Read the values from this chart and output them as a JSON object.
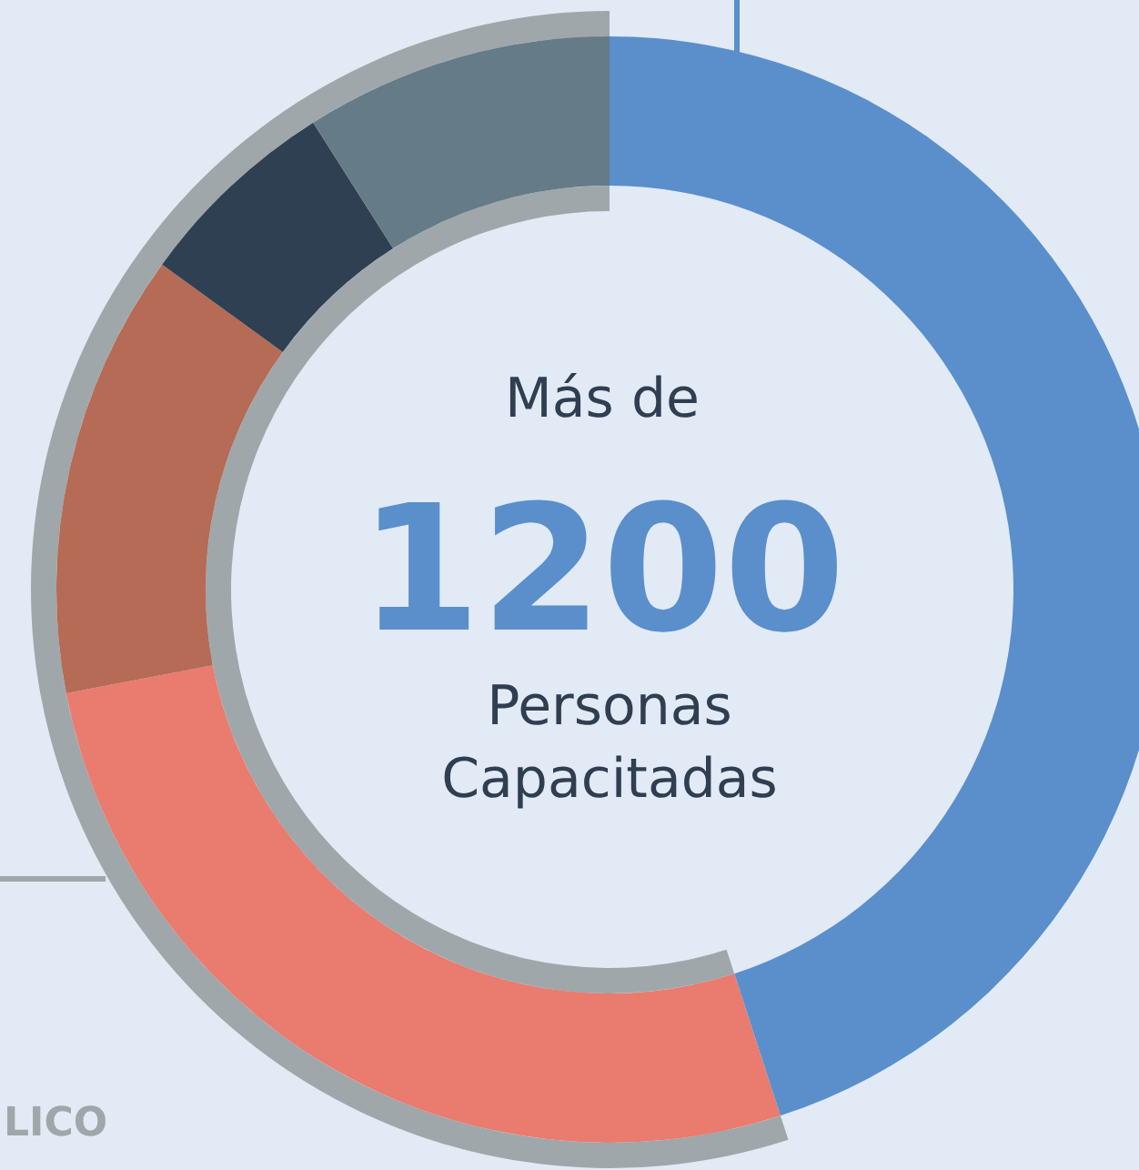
{
  "chart_data": {
    "type": "donut",
    "categories": [
      null,
      null,
      null,
      null,
      null
    ],
    "values": [
      45,
      27,
      13,
      6,
      9
    ],
    "colors": [
      "#5a8fcb",
      "#e97b6f",
      "#b56b55",
      "#304053",
      "#667b88"
    ],
    "annotations": [
      "Más de",
      "1200",
      "Personas Capacitadas",
      "LICO"
    ]
  }
}
